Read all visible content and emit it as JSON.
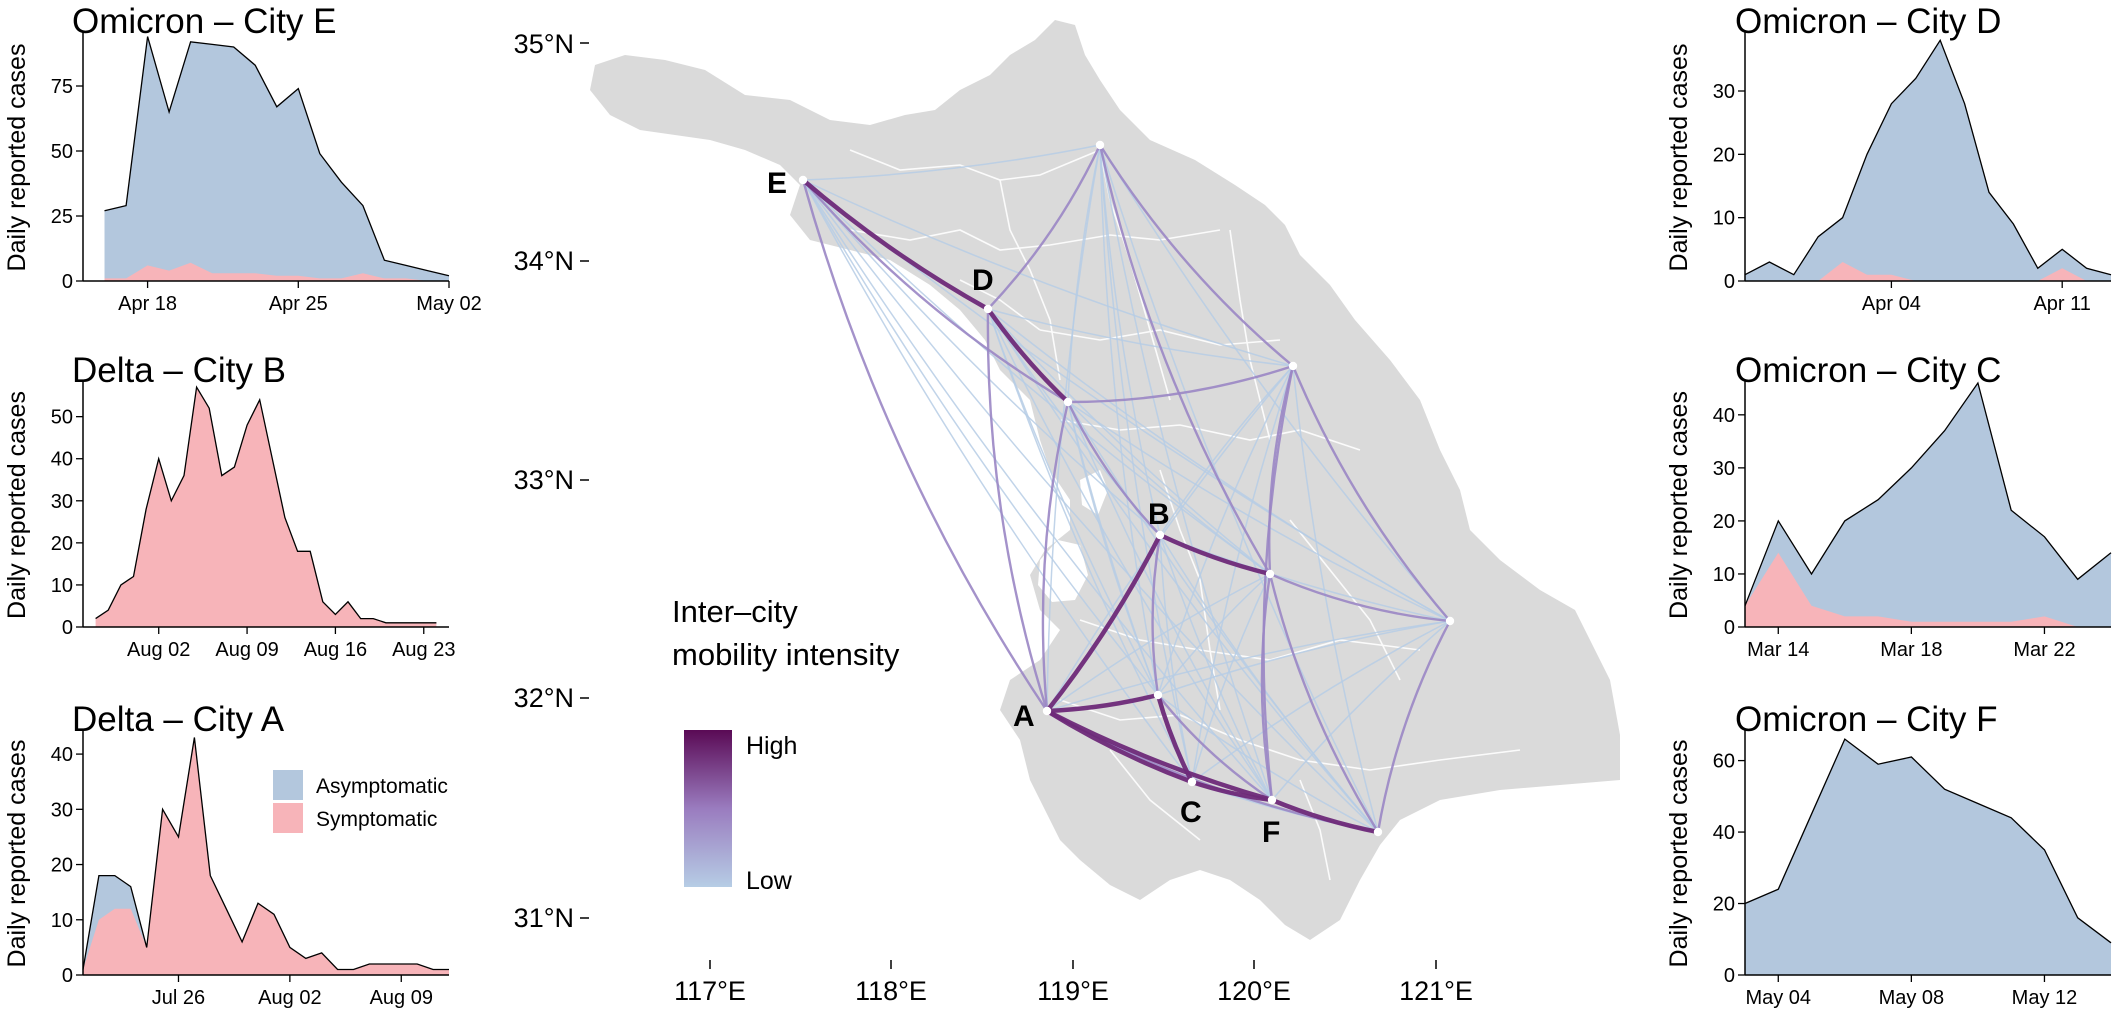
{
  "colors": {
    "asymptomatic": "#b3c7dd",
    "symptomatic": "#f7b4b9",
    "map_land": "#dadada",
    "map_border": "#ffffff",
    "mobility_low": "#b6cde5",
    "mobility_high": "#5a0a55"
  },
  "chart_data": [
    {
      "id": "cityE",
      "type": "area",
      "title": "Omicron – City E",
      "ylabel": "Daily reported cases",
      "x_unit": "date",
      "x": [
        "2022-04-16",
        "2022-04-17",
        "2022-04-18",
        "2022-04-19",
        "2022-04-20",
        "2022-04-21",
        "2022-04-22",
        "2022-04-23",
        "2022-04-24",
        "2022-04-25",
        "2022-04-26",
        "2022-04-27",
        "2022-04-28",
        "2022-04-29",
        "2022-04-30",
        "2022-05-01",
        "2022-05-02"
      ],
      "xlim": [
        "2022-04-15",
        "2022-05-02"
      ],
      "xticks": [
        "2022-04-18",
        "2022-04-25",
        "2022-05-02"
      ],
      "xtick_labels": [
        "Apr 18",
        "Apr 25",
        "May 02"
      ],
      "ylim": [
        0,
        95
      ],
      "yticks": [
        0,
        25,
        50,
        75
      ],
      "series": [
        {
          "name": "Asymptomatic",
          "values": [
            27,
            29,
            94,
            65,
            92,
            91,
            90,
            83,
            67,
            74,
            49,
            38,
            29,
            8,
            6,
            4,
            2
          ]
        },
        {
          "name": "Symptomatic",
          "values": [
            1,
            1,
            6,
            4,
            7,
            3,
            3,
            3,
            2,
            2,
            1,
            1,
            3,
            1,
            1,
            0,
            0
          ]
        }
      ]
    },
    {
      "id": "cityB",
      "type": "area",
      "title": "Delta – City B",
      "ylabel": "Daily reported cases",
      "x_unit": "date",
      "x": [
        "2021-07-28",
        "2021-07-29",
        "2021-07-30",
        "2021-07-31",
        "2021-08-01",
        "2021-08-02",
        "2021-08-03",
        "2021-08-04",
        "2021-08-05",
        "2021-08-06",
        "2021-08-07",
        "2021-08-08",
        "2021-08-09",
        "2021-08-10",
        "2021-08-11",
        "2021-08-12",
        "2021-08-13",
        "2021-08-14",
        "2021-08-15",
        "2021-08-16",
        "2021-08-17",
        "2021-08-18",
        "2021-08-19",
        "2021-08-20",
        "2021-08-21",
        "2021-08-22",
        "2021-08-23",
        "2021-08-24"
      ],
      "xlim": [
        "2021-07-27",
        "2021-08-25"
      ],
      "xticks": [
        "2021-08-02",
        "2021-08-09",
        "2021-08-16",
        "2021-08-23"
      ],
      "xtick_labels": [
        "Aug 02",
        "Aug 09",
        "Aug 16",
        "Aug 23"
      ],
      "ylim": [
        0,
        58
      ],
      "yticks": [
        0,
        10,
        20,
        30,
        40,
        50
      ],
      "series": [
        {
          "name": "Asymptomatic",
          "values": [
            0,
            0,
            0,
            0,
            0,
            0,
            0,
            0,
            0,
            0,
            0,
            0,
            0,
            0,
            0,
            0,
            0,
            0,
            0,
            0,
            0,
            0,
            0,
            0,
            0,
            0,
            0,
            0
          ]
        },
        {
          "name": "Symptomatic",
          "values": [
            2,
            4,
            10,
            12,
            28,
            40,
            30,
            36,
            57,
            52,
            36,
            38,
            48,
            54,
            40,
            26,
            18,
            18,
            6,
            3,
            6,
            2,
            2,
            1,
            1,
            1,
            1,
            1
          ]
        }
      ]
    },
    {
      "id": "cityA",
      "type": "area",
      "title": "Delta – City A",
      "ylabel": "Daily reported cases",
      "x_unit": "date",
      "x": [
        "2021-07-20",
        "2021-07-21",
        "2021-07-22",
        "2021-07-23",
        "2021-07-24",
        "2021-07-25",
        "2021-07-26",
        "2021-07-27",
        "2021-07-28",
        "2021-07-29",
        "2021-07-30",
        "2021-07-31",
        "2021-08-01",
        "2021-08-02",
        "2021-08-03",
        "2021-08-04",
        "2021-08-05",
        "2021-08-06",
        "2021-08-07",
        "2021-08-08",
        "2021-08-09",
        "2021-08-10",
        "2021-08-11",
        "2021-08-12"
      ],
      "xlim": [
        "2021-07-20",
        "2021-08-12"
      ],
      "xticks": [
        "2021-07-26",
        "2021-08-02",
        "2021-08-09"
      ],
      "xtick_labels": [
        "Jul 26",
        "Aug 02",
        "Aug 09"
      ],
      "ylim": [
        0,
        44
      ],
      "yticks": [
        0,
        10,
        20,
        30,
        40
      ],
      "series": [
        {
          "name": "Asymptomatic",
          "values": [
            1,
            18,
            18,
            16,
            5,
            30,
            25,
            43,
            18,
            12,
            6,
            13,
            11,
            5,
            3,
            4,
            1,
            1,
            2,
            2,
            2,
            2,
            1,
            1
          ]
        },
        {
          "name": "Symptomatic",
          "values": [
            1,
            10,
            12,
            12,
            5,
            30,
            25,
            43,
            18,
            12,
            6,
            13,
            11,
            5,
            3,
            4,
            1,
            1,
            2,
            2,
            2,
            2,
            1,
            1
          ]
        }
      ],
      "legend": {
        "position": "right",
        "items": [
          "Asymptomatic",
          "Symptomatic"
        ]
      }
    },
    {
      "id": "cityD",
      "type": "area",
      "title": "Omicron – City D",
      "ylabel": "Daily reported cases",
      "x_unit": "date",
      "x": [
        "2022-03-29",
        "2022-03-30",
        "2022-03-31",
        "2022-04-01",
        "2022-04-02",
        "2022-04-03",
        "2022-04-04",
        "2022-04-05",
        "2022-04-06",
        "2022-04-07",
        "2022-04-08",
        "2022-04-09",
        "2022-04-10",
        "2022-04-11",
        "2022-04-12",
        "2022-04-13"
      ],
      "xlim": [
        "2022-03-29",
        "2022-04-13"
      ],
      "xticks": [
        "2022-04-04",
        "2022-04-11"
      ],
      "xtick_labels": [
        "Apr 04",
        "Apr 11"
      ],
      "ylim": [
        0,
        39
      ],
      "yticks": [
        0,
        10,
        20,
        30
      ],
      "series": [
        {
          "name": "Asymptomatic",
          "values": [
            1,
            3,
            1,
            7,
            10,
            20,
            28,
            32,
            38,
            28,
            14,
            9,
            2,
            5,
            2,
            1
          ]
        },
        {
          "name": "Symptomatic",
          "values": [
            0,
            0,
            0,
            0,
            3,
            1,
            1,
            0,
            0,
            0,
            0,
            0,
            0,
            2,
            0,
            0
          ]
        }
      ]
    },
    {
      "id": "cityC",
      "type": "area",
      "title": "Omicron – City C",
      "ylabel": "Daily reported cases",
      "x_unit": "date",
      "x": [
        "2022-03-13",
        "2022-03-14",
        "2022-03-15",
        "2022-03-16",
        "2022-03-17",
        "2022-03-18",
        "2022-03-19",
        "2022-03-20",
        "2022-03-21",
        "2022-03-22",
        "2022-03-23",
        "2022-03-24"
      ],
      "xlim": [
        "2022-03-13",
        "2022-03-24"
      ],
      "xticks": [
        "2022-03-14",
        "2022-03-18",
        "2022-03-22"
      ],
      "xtick_labels": [
        "Mar 14",
        "Mar 18",
        "Mar 22"
      ],
      "ylim": [
        0,
        46
      ],
      "yticks": [
        0,
        10,
        20,
        30,
        40
      ],
      "series": [
        {
          "name": "Asymptomatic",
          "values": [
            4,
            20,
            10,
            20,
            24,
            30,
            37,
            46,
            22,
            17,
            9,
            14
          ]
        },
        {
          "name": "Symptomatic",
          "values": [
            4,
            14,
            4,
            2,
            2,
            1,
            1,
            1,
            1,
            2,
            0,
            0
          ]
        }
      ]
    },
    {
      "id": "cityF",
      "type": "area",
      "title": "Omicron – City F",
      "ylabel": "Daily reported cases",
      "x_unit": "date",
      "x": [
        "2022-05-03",
        "2022-05-04",
        "2022-05-05",
        "2022-05-06",
        "2022-05-07",
        "2022-05-08",
        "2022-05-09",
        "2022-05-10",
        "2022-05-11",
        "2022-05-12",
        "2022-05-13",
        "2022-05-14"
      ],
      "xlim": [
        "2022-05-03",
        "2022-05-14"
      ],
      "xticks": [
        "2022-05-04",
        "2022-05-08",
        "2022-05-12"
      ],
      "xtick_labels": [
        "May 04",
        "May 08",
        "May 12"
      ],
      "ylim": [
        0,
        68
      ],
      "yticks": [
        0,
        20,
        40,
        60
      ],
      "series": [
        {
          "name": "Asymptomatic",
          "values": [
            20,
            24,
            45,
            66,
            59,
            61,
            52,
            48,
            44,
            35,
            16,
            9
          ]
        },
        {
          "name": "Symptomatic",
          "values": [
            0,
            0,
            0,
            0,
            0,
            0,
            0,
            0,
            0,
            0,
            0,
            0
          ]
        }
      ]
    }
  ],
  "map": {
    "lon_ticks": [
      "117°E",
      "118°E",
      "119°E",
      "120°E",
      "121°E"
    ],
    "lat_ticks": [
      "35°N",
      "34°N",
      "33°N",
      "32°N",
      "31°N"
    ],
    "legend_title_line1": "Inter–city",
    "legend_title_line2": "mobility intensity",
    "legend_high": "High",
    "legend_low": "Low",
    "city_labels": [
      "E",
      "D",
      "B",
      "A",
      "C",
      "F"
    ],
    "node_count": 13
  }
}
